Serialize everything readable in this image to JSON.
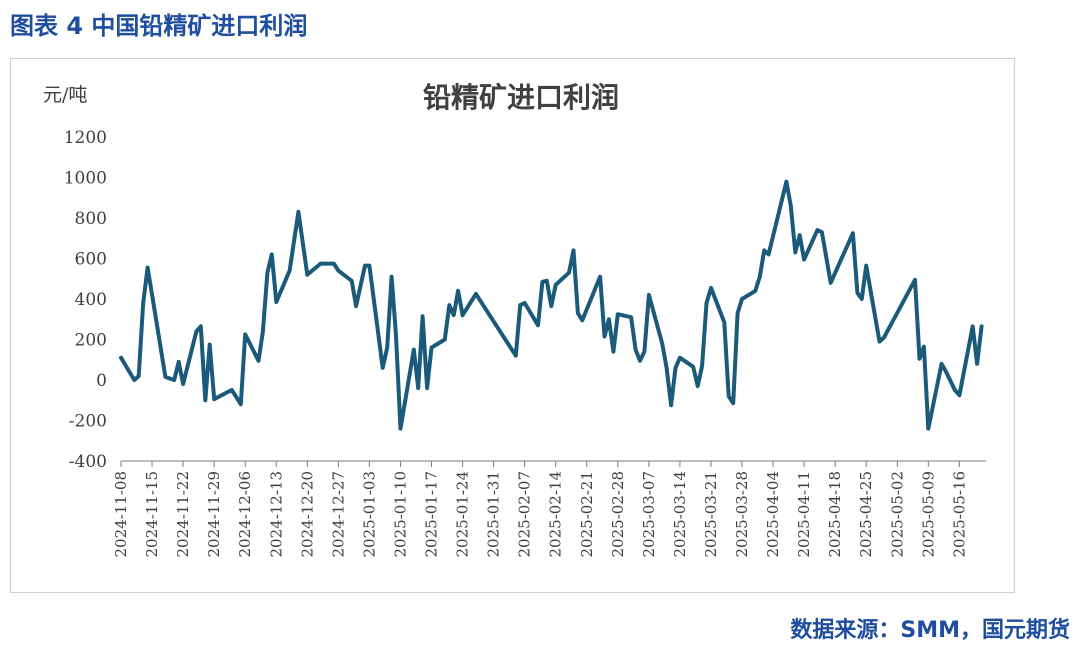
{
  "figure_title": "图表 4 中国铅精矿进口利润",
  "source": "数据来源：SMM，国元期货",
  "colors": {
    "line": "#1b5a7a",
    "heading": "#1f4e9e",
    "axis": "#7f7f7f",
    "text": "#404040"
  },
  "chart_data": {
    "type": "line",
    "title": "铅精矿进口利润",
    "ylabel": "元/吨",
    "xlabel": "",
    "ylim": [
      -400,
      1200
    ],
    "yticks": [
      1200,
      1000,
      800,
      600,
      400,
      200,
      0,
      -200,
      -400
    ],
    "xlim": [
      "2024-11-08",
      "2025-05-22"
    ],
    "xticks": [
      "2024-11-08",
      "2024-11-15",
      "2024-11-22",
      "2024-11-29",
      "2024-12-06",
      "2024-12-13",
      "2024-12-20",
      "2024-12-27",
      "2025-01-03",
      "2025-01-10",
      "2025-01-17",
      "2025-01-24",
      "2025-01-31",
      "2025-02-07",
      "2025-02-14",
      "2025-02-21",
      "2025-02-28",
      "2025-03-07",
      "2025-03-14",
      "2025-03-21",
      "2025-03-28",
      "2025-04-04",
      "2025-04-11",
      "2025-04-18",
      "2025-04-25",
      "2025-05-02",
      "2025-05-09",
      "2025-05-16"
    ],
    "grid": false,
    "legend": "none",
    "series": [
      {
        "name": "",
        "points": [
          [
            "2024-11-08",
            110
          ],
          [
            "2024-11-11",
            0
          ],
          [
            "2024-11-12",
            20
          ],
          [
            "2024-11-13",
            380
          ],
          [
            "2024-11-14",
            555
          ],
          [
            "2024-11-15",
            420
          ],
          [
            "2024-11-18",
            15
          ],
          [
            "2024-11-20",
            0
          ],
          [
            "2024-11-21",
            90
          ],
          [
            "2024-11-22",
            -20
          ],
          [
            "2024-11-25",
            240
          ],
          [
            "2024-11-26",
            265
          ],
          [
            "2024-11-27",
            -100
          ],
          [
            "2024-11-28",
            175
          ],
          [
            "2024-11-29",
            -95
          ],
          [
            "2024-12-02",
            -60
          ],
          [
            "2024-12-03",
            -50
          ],
          [
            "2024-12-05",
            -120
          ],
          [
            "2024-12-06",
            225
          ],
          [
            "2024-12-09",
            95
          ],
          [
            "2024-12-10",
            240
          ],
          [
            "2024-12-11",
            530
          ],
          [
            "2024-12-12",
            620
          ],
          [
            "2024-12-13",
            385
          ],
          [
            "2024-12-16",
            540
          ],
          [
            "2024-12-18",
            830
          ],
          [
            "2024-12-20",
            520
          ],
          [
            "2024-12-23",
            575
          ],
          [
            "2024-12-26",
            575
          ],
          [
            "2024-12-27",
            540
          ],
          [
            "2024-12-30",
            490
          ],
          [
            "2024-12-31",
            365
          ],
          [
            "2025-01-02",
            565
          ],
          [
            "2025-01-03",
            565
          ],
          [
            "2025-01-06",
            60
          ],
          [
            "2025-01-07",
            160
          ],
          [
            "2025-01-08",
            510
          ],
          [
            "2025-01-09",
            220
          ],
          [
            "2025-01-10",
            -240
          ],
          [
            "2025-01-13",
            150
          ],
          [
            "2025-01-14",
            -40
          ],
          [
            "2025-01-15",
            315
          ],
          [
            "2025-01-16",
            -40
          ],
          [
            "2025-01-17",
            160
          ],
          [
            "2025-01-20",
            200
          ],
          [
            "2025-01-21",
            370
          ],
          [
            "2025-01-22",
            320
          ],
          [
            "2025-01-23",
            440
          ],
          [
            "2025-01-24",
            320
          ],
          [
            "2025-01-27",
            425
          ],
          [
            "2025-02-05",
            120
          ],
          [
            "2025-02-06",
            370
          ],
          [
            "2025-02-07",
            380
          ],
          [
            "2025-02-10",
            270
          ],
          [
            "2025-02-11",
            485
          ],
          [
            "2025-02-12",
            490
          ],
          [
            "2025-02-13",
            365
          ],
          [
            "2025-02-14",
            470
          ],
          [
            "2025-02-17",
            530
          ],
          [
            "2025-02-18",
            640
          ],
          [
            "2025-02-19",
            330
          ],
          [
            "2025-02-20",
            295
          ],
          [
            "2025-02-24",
            510
          ],
          [
            "2025-02-25",
            215
          ],
          [
            "2025-02-26",
            300
          ],
          [
            "2025-02-27",
            140
          ],
          [
            "2025-02-28",
            325
          ],
          [
            "2025-03-03",
            310
          ],
          [
            "2025-03-04",
            150
          ],
          [
            "2025-03-05",
            95
          ],
          [
            "2025-03-06",
            140
          ],
          [
            "2025-03-07",
            420
          ],
          [
            "2025-03-10",
            180
          ],
          [
            "2025-03-11",
            60
          ],
          [
            "2025-03-12",
            -125
          ],
          [
            "2025-03-13",
            60
          ],
          [
            "2025-03-14",
            110
          ],
          [
            "2025-03-17",
            65
          ],
          [
            "2025-03-18",
            -30
          ],
          [
            "2025-03-19",
            70
          ],
          [
            "2025-03-20",
            380
          ],
          [
            "2025-03-21",
            455
          ],
          [
            "2025-03-24",
            285
          ],
          [
            "2025-03-25",
            -80
          ],
          [
            "2025-03-26",
            -115
          ],
          [
            "2025-03-27",
            330
          ],
          [
            "2025-03-28",
            400
          ],
          [
            "2025-03-31",
            440
          ],
          [
            "2025-04-01",
            510
          ],
          [
            "2025-04-02",
            640
          ],
          [
            "2025-04-03",
            620
          ],
          [
            "2025-04-07",
            980
          ],
          [
            "2025-04-08",
            860
          ],
          [
            "2025-04-09",
            630
          ],
          [
            "2025-04-10",
            715
          ],
          [
            "2025-04-11",
            595
          ],
          [
            "2025-04-14",
            740
          ],
          [
            "2025-04-15",
            730
          ],
          [
            "2025-04-17",
            480
          ],
          [
            "2025-04-22",
            725
          ],
          [
            "2025-04-23",
            430
          ],
          [
            "2025-04-24",
            400
          ],
          [
            "2025-04-25",
            565
          ],
          [
            "2025-04-28",
            190
          ],
          [
            "2025-04-29",
            210
          ],
          [
            "2025-05-06",
            495
          ],
          [
            "2025-05-07",
            105
          ],
          [
            "2025-05-08",
            165
          ],
          [
            "2025-05-09",
            -240
          ],
          [
            "2025-05-12",
            80
          ],
          [
            "2025-05-13",
            40
          ],
          [
            "2025-05-15",
            -50
          ],
          [
            "2025-05-16",
            -75
          ],
          [
            "2025-05-19",
            265
          ],
          [
            "2025-05-20",
            80
          ],
          [
            "2025-05-21",
            265
          ]
        ]
      }
    ]
  }
}
